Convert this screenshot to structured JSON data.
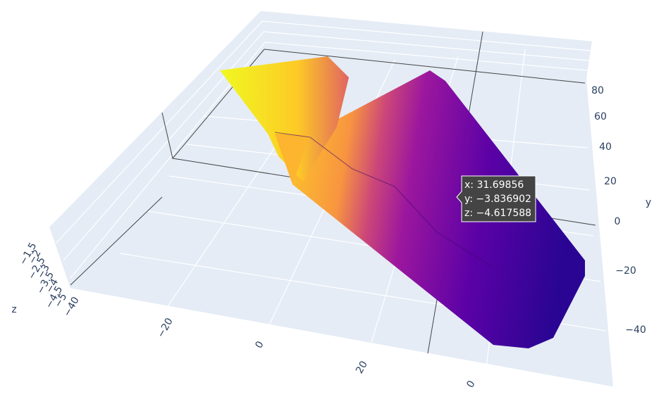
{
  "chart_data": {
    "type": "surface",
    "x_tick_labels": [
      "−40",
      "−20",
      "0",
      "20",
      "0"
    ],
    "y_tick_labels": [
      "80",
      "60",
      "40",
      "20",
      "0",
      "−20",
      "−40"
    ],
    "z_tick_labels": [
      "−1.5",
      "−2",
      "−2.5",
      "−3",
      "−3.5",
      "−4",
      "−4.5",
      "−5"
    ],
    "y_axis_title": "y",
    "z_axis_title": "z",
    "hover": [
      "x: 31.69856",
      "y: −3.836902",
      "z: −4.617588"
    ]
  }
}
